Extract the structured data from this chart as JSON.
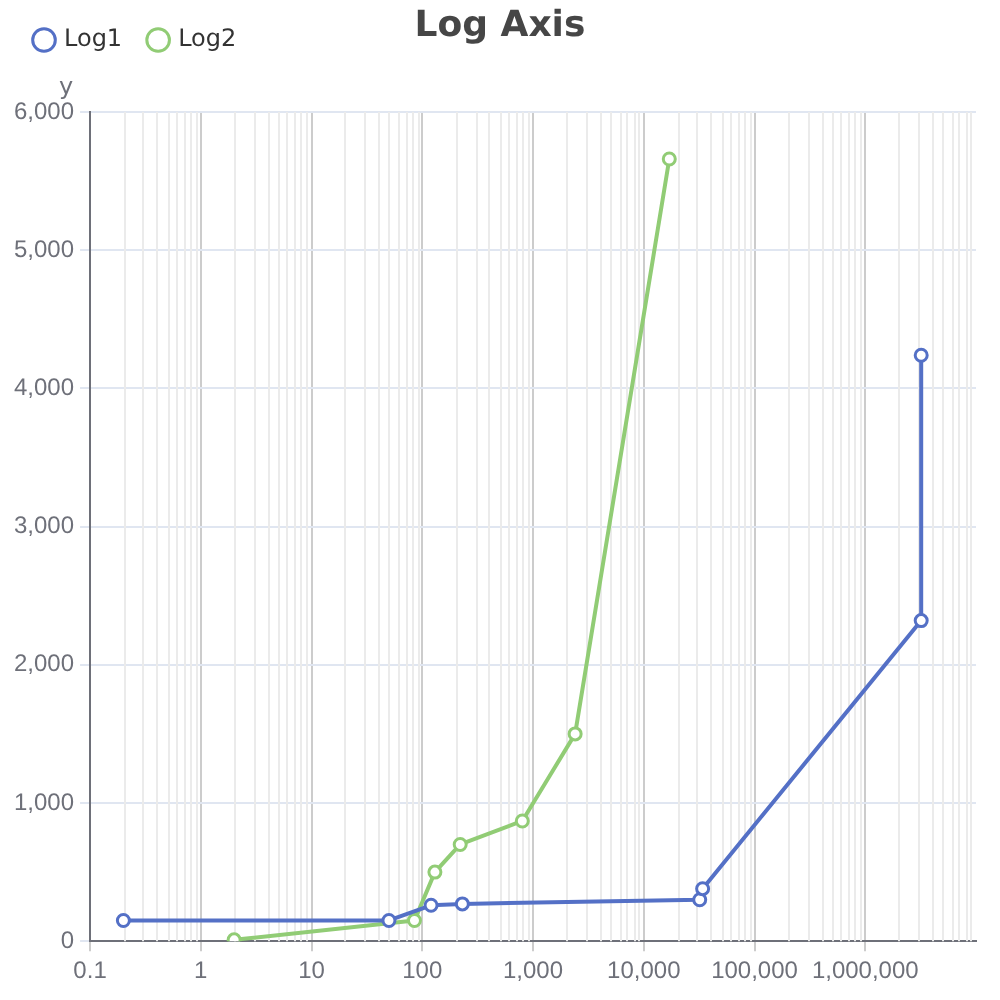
{
  "chart_data": {
    "type": "line",
    "title": "Log Axis",
    "ylabel": "y",
    "log": "x",
    "grid": true,
    "legend": "top left",
    "marker": "circle",
    "line_style": "solid",
    "xlim": [
      0.1,
      10000000
    ],
    "xticks": [
      0.1,
      1,
      10,
      100,
      {
        "value": 1000,
        "label": "1,000"
      },
      {
        "value": 10000,
        "label": "10,000"
      },
      {
        "value": 100000,
        "label": "100,000"
      },
      {
        "value": 1000000,
        "label": "1,000,000"
      }
    ],
    "ylim": [
      0,
      6000
    ],
    "yticks": [
      0,
      {
        "value": 1000,
        "label": "1,000"
      },
      {
        "value": 2000,
        "label": "2,000"
      },
      {
        "value": 3000,
        "label": "3,000"
      },
      {
        "value": 4000,
        "label": "4,000"
      },
      {
        "value": 5000,
        "label": "5,000"
      },
      {
        "value": 6000,
        "label": "6,000"
      }
    ],
    "series": [
      {
        "name": "Log1",
        "color": "#5470c6",
        "x": [
          0.2,
          50,
          120,
          230,
          32000,
          34000,
          3200000,
          3200000
        ],
        "values": [
          150,
          150,
          260,
          270,
          300,
          380,
          2320,
          4240
        ]
      },
      {
        "name": "Log2",
        "color": "#91cc75",
        "x": [
          2,
          85,
          130,
          220,
          800,
          2400,
          17000
        ],
        "values": [
          10,
          150,
          500,
          700,
          870,
          1500,
          5660
        ]
      }
    ]
  }
}
